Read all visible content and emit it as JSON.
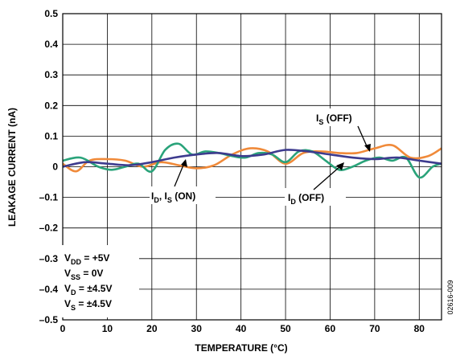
{
  "chart_data": {
    "type": "line",
    "xlabel": "TEMPERATURE (°C)",
    "ylabel": "LEAKAGE CURRENT (nA)",
    "xlim": [
      0,
      85
    ],
    "ylim": [
      -0.5,
      0.5
    ],
    "grid": true,
    "x_ticks": [
      "0",
      "10",
      "20",
      "30",
      "40",
      "50",
      "60",
      "70",
      "80"
    ],
    "y_ticks": [
      "0.5",
      "0.4",
      "0.3",
      "0.2",
      "0.1",
      "0",
      "–0.1",
      "–0.2",
      "–0.3",
      "–0.4",
      "–0.5"
    ],
    "series": [
      {
        "name": "IS (OFF)",
        "color": "#f08a3a",
        "x": [
          0,
          3,
          6,
          10,
          14,
          18,
          22,
          26,
          30,
          34,
          38,
          42,
          46,
          50,
          54,
          58,
          62,
          66,
          70,
          74,
          78,
          82,
          85
        ],
        "y": [
          0.01,
          -0.015,
          0.02,
          0.025,
          0.02,
          0.0,
          0.015,
          0.005,
          -0.005,
          0.005,
          0.04,
          0.06,
          0.05,
          0.01,
          0.045,
          0.05,
          0.045,
          0.045,
          0.06,
          0.07,
          0.03,
          0.035,
          0.06
        ]
      },
      {
        "name": "ID (OFF)",
        "color": "#2aa37a",
        "x": [
          0,
          4,
          8,
          11,
          14,
          17,
          20,
          23,
          26,
          29,
          32,
          35,
          38,
          41,
          44,
          47,
          50,
          53,
          56,
          59,
          62,
          65,
          68,
          71,
          74,
          77,
          80,
          83,
          85
        ],
        "y": [
          0.02,
          0.03,
          0.0,
          -0.01,
          0.0,
          0.01,
          -0.015,
          0.055,
          0.075,
          0.04,
          0.05,
          0.045,
          0.035,
          0.03,
          0.045,
          0.04,
          0.015,
          0.05,
          0.05,
          0.02,
          -0.01,
          0.0,
          0.02,
          0.03,
          0.02,
          0.03,
          -0.035,
          0.0,
          0.01
        ]
      },
      {
        "name": "ID, IS (ON)",
        "color": "#3d3b8e",
        "x": [
          0,
          5,
          10,
          15,
          20,
          25,
          30,
          35,
          40,
          45,
          50,
          55,
          60,
          65,
          70,
          75,
          80,
          85
        ],
        "y": [
          0.0,
          0.015,
          0.01,
          0.005,
          0.015,
          0.03,
          0.04,
          0.045,
          0.035,
          0.04,
          0.055,
          0.05,
          0.04,
          0.03,
          0.025,
          0.03,
          0.02,
          0.01
        ]
      }
    ],
    "annotations": {
      "is_off": {
        "main": "I",
        "sub": "S",
        "rest": " (OFF)"
      },
      "on": {
        "i1": "I",
        "s1": "D",
        "mid": ", I",
        "s2": "S",
        "rest": " (ON)"
      },
      "id_off": {
        "main": "I",
        "sub": "D",
        "rest": " (OFF)"
      },
      "conditions": [
        {
          "main": "V",
          "sub": "DD",
          "rest": " = +5V"
        },
        {
          "main": "V",
          "sub": "SS",
          "rest": " = 0V"
        },
        {
          "main": "V",
          "sub": "D",
          "rest": " = ±4.5V"
        },
        {
          "main": "V",
          "sub": "S",
          "rest": " = ±4.5V"
        }
      ],
      "figure_code": "02616-009"
    }
  }
}
